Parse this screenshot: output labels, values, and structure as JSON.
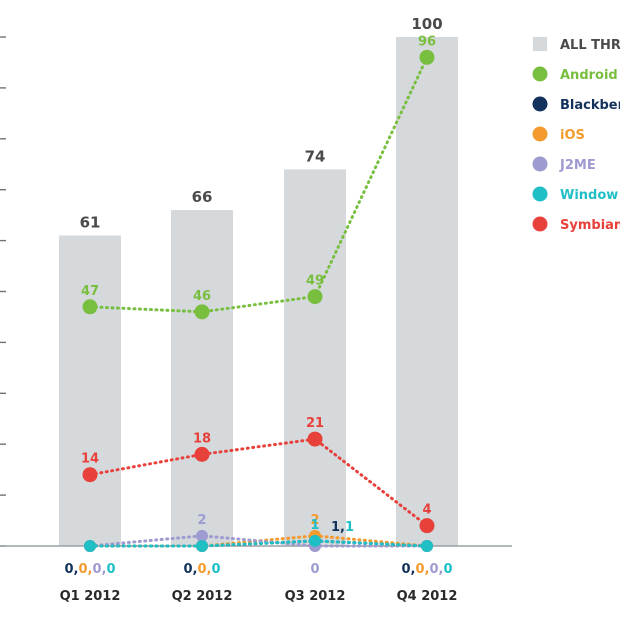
{
  "chart_data": {
    "type": "bar",
    "categories": [
      "Q1 2012",
      "Q2 2012",
      "Q3 2012",
      "Q4 2012"
    ],
    "ylim": [
      0,
      100
    ],
    "totals": {
      "name": "ALL THR",
      "color": "#d5d9dc",
      "values": [
        61,
        66,
        74,
        100
      ]
    },
    "series": [
      {
        "name": "Android",
        "color": "#79bf3f",
        "values": [
          47,
          46,
          49,
          96
        ],
        "labels": [
          "47",
          "46",
          "49",
          "96"
        ]
      },
      {
        "name": "Blackber",
        "color": "#13325b",
        "values": [
          0,
          0,
          1,
          0
        ],
        "labels": [
          "",
          "",
          "",
          ""
        ]
      },
      {
        "name": "iOS",
        "color": "#f39b2f",
        "values": [
          0,
          0,
          2,
          0
        ],
        "labels": [
          "",
          "",
          "2",
          ""
        ]
      },
      {
        "name": "J2ME",
        "color": "#9d9bd0",
        "values": [
          0,
          2,
          0,
          0
        ],
        "labels": [
          "",
          "2",
          "",
          ""
        ]
      },
      {
        "name": "Window",
        "color": "#1fbfc5",
        "values": [
          0,
          0,
          1,
          0
        ],
        "labels": [
          "",
          "",
          "1",
          ""
        ]
      },
      {
        "name": "Symbian",
        "color": "#e8403a",
        "values": [
          14,
          18,
          21,
          4
        ],
        "labels": [
          "14",
          "18",
          "21",
          "4"
        ]
      }
    ],
    "zero_labels": [
      [
        {
          "t": "0,",
          "c": "#13325b"
        },
        {
          "t": "0,",
          "c": "#f39b2f"
        },
        {
          "t": "0,",
          "c": "#9d9bd0"
        },
        {
          "t": "0",
          "c": "#1fbfc5"
        }
      ],
      [
        {
          "t": "0,",
          "c": "#13325b"
        },
        {
          "t": "0,",
          "c": "#f39b2f"
        },
        {
          "t": "0",
          "c": "#1fbfc5"
        }
      ],
      [
        {
          "t": "0",
          "c": "#9d9bd0"
        }
      ],
      [
        {
          "t": "0,",
          "c": "#13325b"
        },
        {
          "t": "0,",
          "c": "#f39b2f"
        },
        {
          "t": "0,",
          "c": "#9d9bd0"
        },
        {
          "t": "0",
          "c": "#1fbfc5"
        }
      ]
    ],
    "q3_small_label": [
      {
        "t": "1,",
        "c": "#13325b"
      },
      {
        "t": "1",
        "c": "#1fbfc5"
      }
    ],
    "grid": false,
    "legend_position": "right"
  }
}
